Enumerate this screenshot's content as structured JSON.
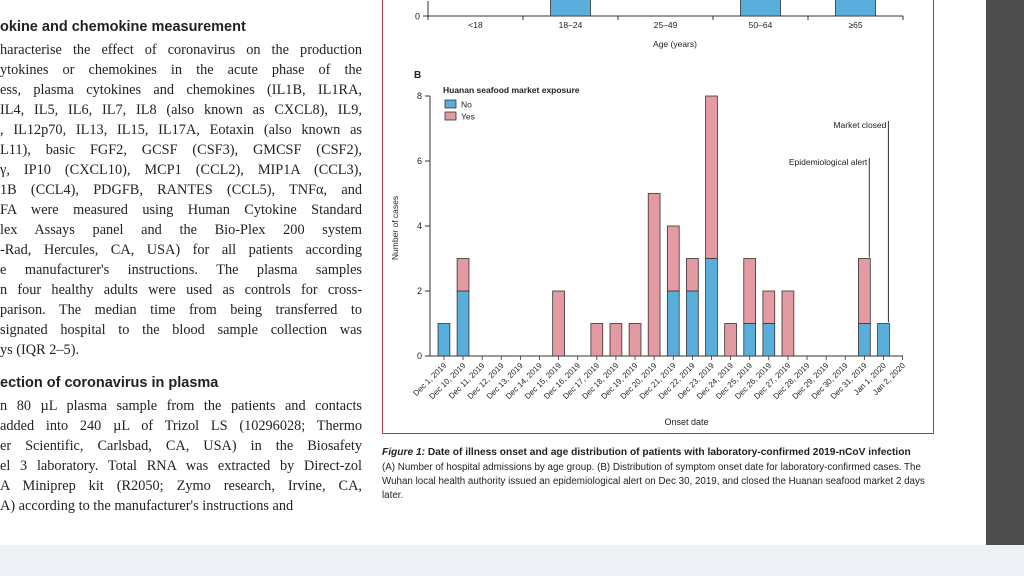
{
  "paragraphs": [
    {
      "heading": "okine and chemokine measurement",
      "lines": [
        "haracterise the effect of coronavirus on the production",
        "ytokines or chemokines in the acute phase of the",
        "ess, plasma cytokines and chemokines (IL1B, IL1RA,",
        "IL4, IL5, IL6, IL7, IL8 (also known as CXCL8), IL9,",
        ", IL12p70, IL13, IL15, IL17A, Eotaxin (also known as",
        "L11), basic FGF2, GCSF (CSF3), GMCSF (CSF2),",
        "γ, IP10 (CXCL10), MCP1 (CCL2), MIP1A (CCL3),",
        "1B (CCL4), PDGFB, RANTES (CCL5), TNFα, and",
        "FA were measured using Human Cytokine Standard",
        "lex Assays panel and the Bio-Plex 200 system",
        "-Rad, Hercules, CA, USA) for all patients according",
        "e manufacturer's instructions. The plasma samples",
        "n four healthy adults were used as controls for cross-",
        "parison. The median time from being transferred to",
        "signated hospital to the blood sample collection was",
        "ys (IQR 2–5)."
      ]
    },
    {
      "heading": "ection of coronavirus in plasma",
      "lines": [
        "n 80 µL plasma sample from the patients and contacts",
        "added into 240 µL of Trizol LS (10296028; Thermo",
        "er Scientific, Carlsbad, CA, USA) in the Biosafety",
        "el 3 laboratory. Total RNA was extracted by Direct-zol",
        "A Miniprep kit (R2050; Zymo research, Irvine, CA,",
        "A) according to the manufacturer's instructions and"
      ]
    }
  ],
  "figure": {
    "panel_a": {
      "zero_label": "0",
      "categories": [
        "<18",
        "18–24",
        "25–49",
        "50–64",
        "≥65"
      ],
      "xlabel": "Age (years)"
    },
    "panel_b": {
      "letter": "B",
      "legend_title": "Huanan seafood market exposure",
      "legend": [
        {
          "label": "No",
          "color": "#5aaedc"
        },
        {
          "label": "Yes",
          "color": "#e39aa0"
        }
      ],
      "annotations": {
        "alert": "Epidemiological alert",
        "closed": "Market closed"
      }
    },
    "caption_title_prefix": "Figure 1:",
    "caption_title": "Date of illness onset and age distribution of patients with laboratory-confirmed 2019-nCoV infection",
    "caption_text": "(A) Number of hospital admissions by age group. (B) Distribution of symptom onset date for laboratory-confirmed cases. The Wuhan local health authority issued an epidemiological alert on Dec 30, 2019, and closed the Huanan seafood market 2 days later."
  },
  "chart_data": {
    "type": "bar",
    "stacked": true,
    "categories": [
      "Dec 1, 2019",
      "Dec 10, 2019",
      "Dec 11, 2019",
      "Dec 12, 2019",
      "Dec 13, 2019",
      "Dec 14, 2019",
      "Dec 15, 2019",
      "Dec 16, 2019",
      "Dec 17, 2019",
      "Dec 18, 2019",
      "Dec 19, 2019",
      "Dec 20, 2019",
      "Dec 21, 2019",
      "Dec 22, 2019",
      "Dec 23, 2019",
      "Dec 24, 2019",
      "Dec 25, 2019",
      "Dec 26, 2019",
      "Dec 27, 2019",
      "Dec 28, 2019",
      "Dec 29, 2019",
      "Dec 30, 2019",
      "Dec 31, 2019",
      "Jan 1, 2020",
      "Jan 2, 2020"
    ],
    "series": [
      {
        "name": "No",
        "values": [
          1,
          2,
          0,
          0,
          0,
          0,
          0,
          0,
          0,
          0,
          0,
          0,
          2,
          2,
          3,
          0,
          1,
          1,
          0,
          0,
          0,
          0,
          1,
          1,
          0
        ]
      },
      {
        "name": "Yes",
        "values": [
          0,
          1,
          0,
          0,
          0,
          0,
          2,
          0,
          1,
          1,
          1,
          5,
          2,
          1,
          5,
          1,
          2,
          1,
          2,
          0,
          0,
          0,
          2,
          0,
          0
        ]
      }
    ],
    "xlabel": "Onset date",
    "ylabel": "Number of cases",
    "ylim": [
      0,
      8
    ],
    "yticks": [
      0,
      2,
      4,
      6,
      8
    ],
    "grid": false,
    "legend_position": "top-left"
  }
}
